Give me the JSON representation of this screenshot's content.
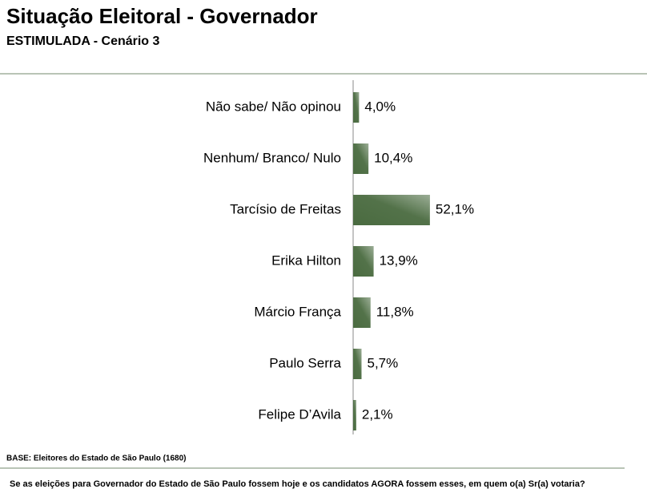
{
  "chart_data": {
    "type": "bar",
    "orientation": "horizontal",
    "title": "Situação Eleitoral - Governador",
    "subtitle": "ESTIMULADA - Cenário 3",
    "categories": [
      "Não sabe/ Não opinou",
      "Nenhum/ Branco/ Nulo",
      "Tarcísio de Freitas",
      "Erika Hilton",
      "Márcio França",
      "Paulo Serra",
      "Felipe D’Avila"
    ],
    "values": [
      4.0,
      10.4,
      52.1,
      13.9,
      11.8,
      5.7,
      2.1
    ],
    "value_labels": [
      "4,0%",
      "10,4%",
      "52,1%",
      "13,9%",
      "11,8%",
      "5,7%",
      "2,1%"
    ],
    "color": "#4a6b40",
    "base_note": "BASE: Eleitores do Estado de São Paulo (1680)",
    "question": "Se as eleições para Governador do Estado de São Paulo fossem hoje e os candidatos AGORA fossem esses, em quem o(a) Sr(a) votaria?"
  }
}
